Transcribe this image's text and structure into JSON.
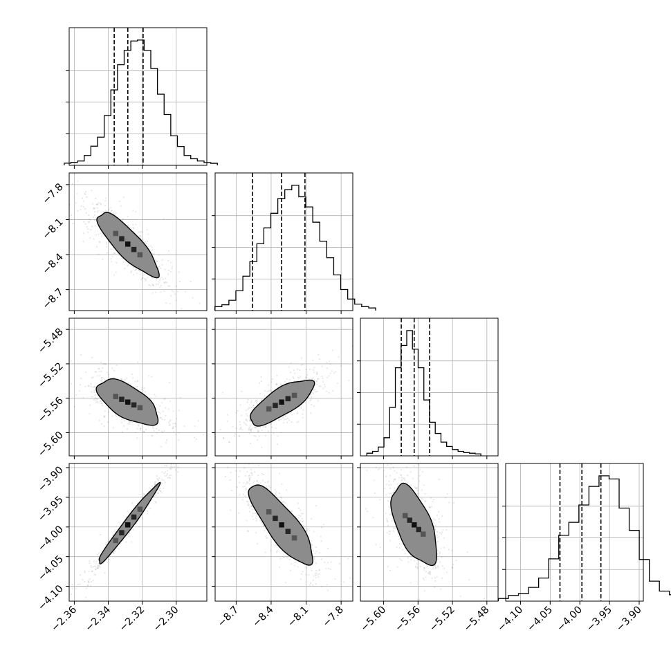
{
  "chart_data": {
    "type": "corner",
    "grid": true,
    "parameters": [
      {
        "range": [
          -2.363,
          -2.282
        ],
        "ticks": [
          -2.36,
          -2.34,
          -2.32,
          -2.3
        ],
        "tick_labels": [
          "−2.36",
          "−2.34",
          "−2.32",
          "−2.30"
        ],
        "median": -2.3285,
        "sigma": 0.0085,
        "quantiles": [
          -2.3365,
          -2.3285,
          -2.3195
        ],
        "hist_counts": [
          0.6,
          1.2,
          2.2,
          6.4,
          13.4,
          20.2,
          36.4,
          55.8,
          74.8,
          85.6,
          92.7,
          93.4,
          85.6,
          72.0,
          52.6,
          37.3,
          21.2,
          13.2,
          6.4,
          3.9,
          2.2,
          1.0,
          0.5
        ]
      },
      {
        "range": [
          -8.88,
          -7.7
        ],
        "ticks": [
          -8.7,
          -8.4,
          -8.1,
          -7.8
        ],
        "tick_labels": [
          "−8.7",
          "−8.4",
          "−8.1",
          "−7.8"
        ],
        "median": -8.31,
        "sigma": 0.13,
        "quantiles": [
          -8.56,
          -8.31,
          -8.11
        ],
        "hist_counts": [
          2.0,
          3.5,
          7.0,
          14.5,
          26.0,
          37.5,
          51.5,
          64.0,
          75.5,
          87.0,
          94.0,
          97.5,
          88.5,
          80.5,
          68.5,
          53.5,
          40.5,
          27.0,
          15.5,
          8.0,
          4.0,
          2.0,
          1.0
        ]
      },
      {
        "range": [
          -5.627,
          -5.467
        ],
        "ticks": [
          -5.6,
          -5.56,
          -5.52,
          -5.48
        ],
        "tick_labels": [
          "−5.60",
          "−5.56",
          "−5.52",
          "−5.48"
        ],
        "median": -5.5645,
        "sigma": 0.0125,
        "quantiles": [
          -5.5795,
          -5.5645,
          -5.5465
        ],
        "hist_counts": [
          1.0,
          2.5,
          6.0,
          13.5,
          38.0,
          70.0,
          88.0,
          100.0,
          85.0,
          70.0,
          44.0,
          26.0,
          17.0,
          10.0,
          6.5,
          4.0,
          2.5,
          1.5,
          1.0,
          0.5
        ]
      },
      {
        "range": [
          -4.125,
          -3.893
        ],
        "ticks": [
          -4.1,
          -4.05,
          -4.0,
          -3.95,
          -3.9
        ],
        "tick_labels": [
          "−4.10",
          "−4.05",
          "−4.00",
          "−3.95",
          "−3.90"
        ],
        "median": -3.9965,
        "sigma": 0.032,
        "quantiles": [
          -4.0335,
          -3.9965,
          -3.9645
        ],
        "hist_counts": [
          1.0,
          3.5,
          5.0,
          10.0,
          17.5,
          33.0,
          52.0,
          62.5,
          76.5,
          91.5,
          100.0,
          97.5,
          74.0,
          56.0,
          32.5,
          15.0,
          7.0,
          4.0,
          2.0,
          1.0
        ]
      }
    ],
    "correlations": {
      "1,0": -0.84,
      "2,0": -0.62,
      "2,1": 0.75,
      "3,0": 0.98,
      "3,1": -0.82,
      "3,2": -0.58
    }
  }
}
